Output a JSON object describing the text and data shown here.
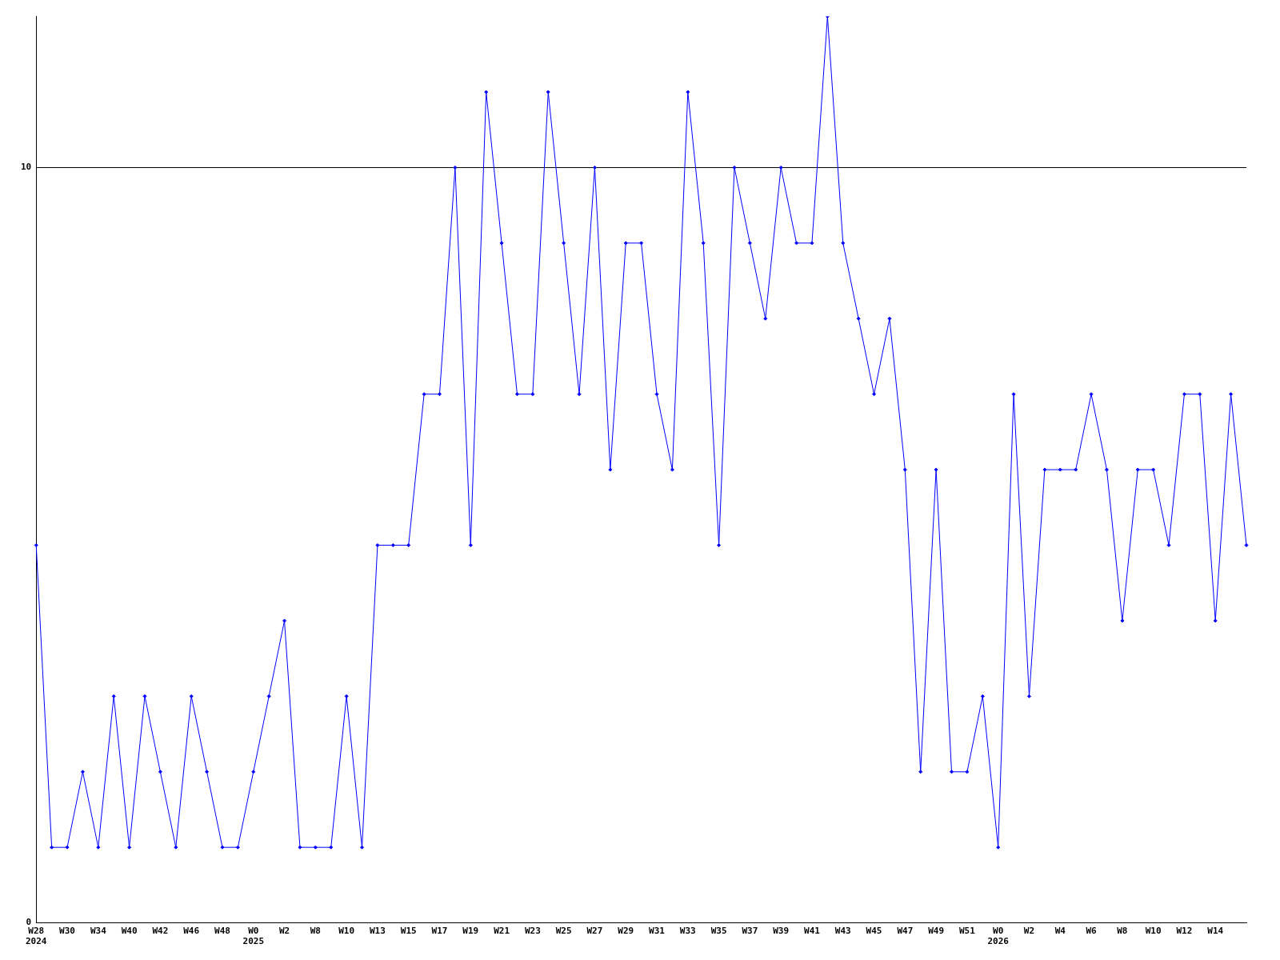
{
  "chart_data": {
    "type": "line",
    "categories": [
      "W28\n2024",
      null,
      "W30",
      null,
      "W34",
      null,
      "W40",
      null,
      "W42",
      null,
      "W46",
      null,
      "W48",
      null,
      "W0\n2025",
      null,
      "W2",
      null,
      "W8",
      null,
      "W10",
      null,
      "W13",
      null,
      "W15",
      null,
      "W17",
      null,
      "W19",
      null,
      "W21",
      null,
      "W23",
      null,
      "W25",
      null,
      "W27",
      null,
      "W29",
      null,
      "W31",
      null,
      "W33",
      null,
      "W35",
      null,
      "W37",
      null,
      "W39",
      null,
      "W41",
      null,
      "W43",
      null,
      "W45",
      null,
      "W47",
      null,
      "W49",
      null,
      "W51",
      null,
      "W0\n2026",
      null,
      "W2",
      null,
      "W4",
      null,
      "W6",
      null,
      "W8",
      null,
      "W10",
      null,
      "W12",
      null,
      "W14",
      null,
      null
    ],
    "series": [
      {
        "color": "#0000ff",
        "values": [
          5,
          1,
          1,
          2,
          1,
          3,
          1,
          3,
          2,
          1,
          3,
          2,
          1,
          1,
          2,
          3,
          4,
          1,
          1,
          1,
          3,
          1,
          5,
          5,
          5,
          7,
          7,
          10,
          5,
          11,
          9,
          7,
          7,
          11,
          9,
          7,
          10,
          6,
          9,
          9,
          7,
          6,
          11,
          9,
          5,
          10,
          9,
          8,
          10,
          9,
          9,
          12,
          9,
          8,
          7,
          8,
          6,
          2,
          6,
          2,
          2,
          3,
          1,
          7,
          3,
          6,
          6,
          6,
          7,
          6,
          4,
          6,
          6,
          5,
          7,
          7,
          4,
          7,
          5
        ]
      }
    ],
    "ylim": [
      0,
      12
    ],
    "yticks": [
      0,
      10
    ],
    "grid": "y",
    "legend": false,
    "marker": "diamond",
    "line_style": "solid"
  }
}
